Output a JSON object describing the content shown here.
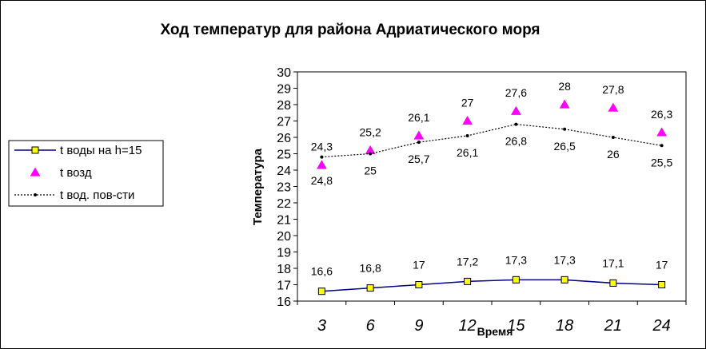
{
  "chart_data": {
    "type": "line",
    "title": "Ход температур для района Адриатического моря",
    "xlabel": "Время",
    "ylabel": "Температура",
    "x": [
      3,
      6,
      9,
      12,
      15,
      18,
      21,
      24
    ],
    "x_tick_labels": [
      "3",
      "6",
      "9",
      "12",
      "15",
      "18",
      "21",
      "24"
    ],
    "ylim": [
      16,
      30
    ],
    "y_ticks": [
      "16",
      "17",
      "18",
      "19",
      "20",
      "21",
      "22",
      "23",
      "24",
      "25",
      "26",
      "27",
      "28",
      "29",
      "30"
    ],
    "grid": false,
    "legend_position": "left",
    "series": [
      {
        "name": "t воды на h=15",
        "style": "solid-line-square-marker",
        "color": "#00008b",
        "marker_color": "#ffff00",
        "values": [
          16.6,
          16.8,
          17,
          17.2,
          17.3,
          17.3,
          17.1,
          17
        ],
        "labels": [
          "16,6",
          "16,8",
          "17",
          "17,2",
          "17,3",
          "17,3",
          "17,1",
          "17"
        ]
      },
      {
        "name": "t возд",
        "style": "triangle-markers",
        "color": "#ff00ff",
        "values": [
          24.3,
          25.2,
          26.1,
          27,
          27.6,
          28,
          27.8,
          26.3
        ],
        "labels": [
          "24,3",
          "25,2",
          "26,1",
          "27",
          "27,6",
          "28",
          "27,8",
          "26,3"
        ]
      },
      {
        "name": "t вод. пов-сти",
        "style": "dotted-line-dot-marker",
        "color": "#000000",
        "values": [
          24.8,
          25,
          25.7,
          26.1,
          26.8,
          26.5,
          26,
          25.5
        ],
        "labels": [
          "24,8",
          "25",
          "25,7",
          "26,1",
          "26,8",
          "26,5",
          "26",
          "25,5"
        ]
      }
    ]
  }
}
